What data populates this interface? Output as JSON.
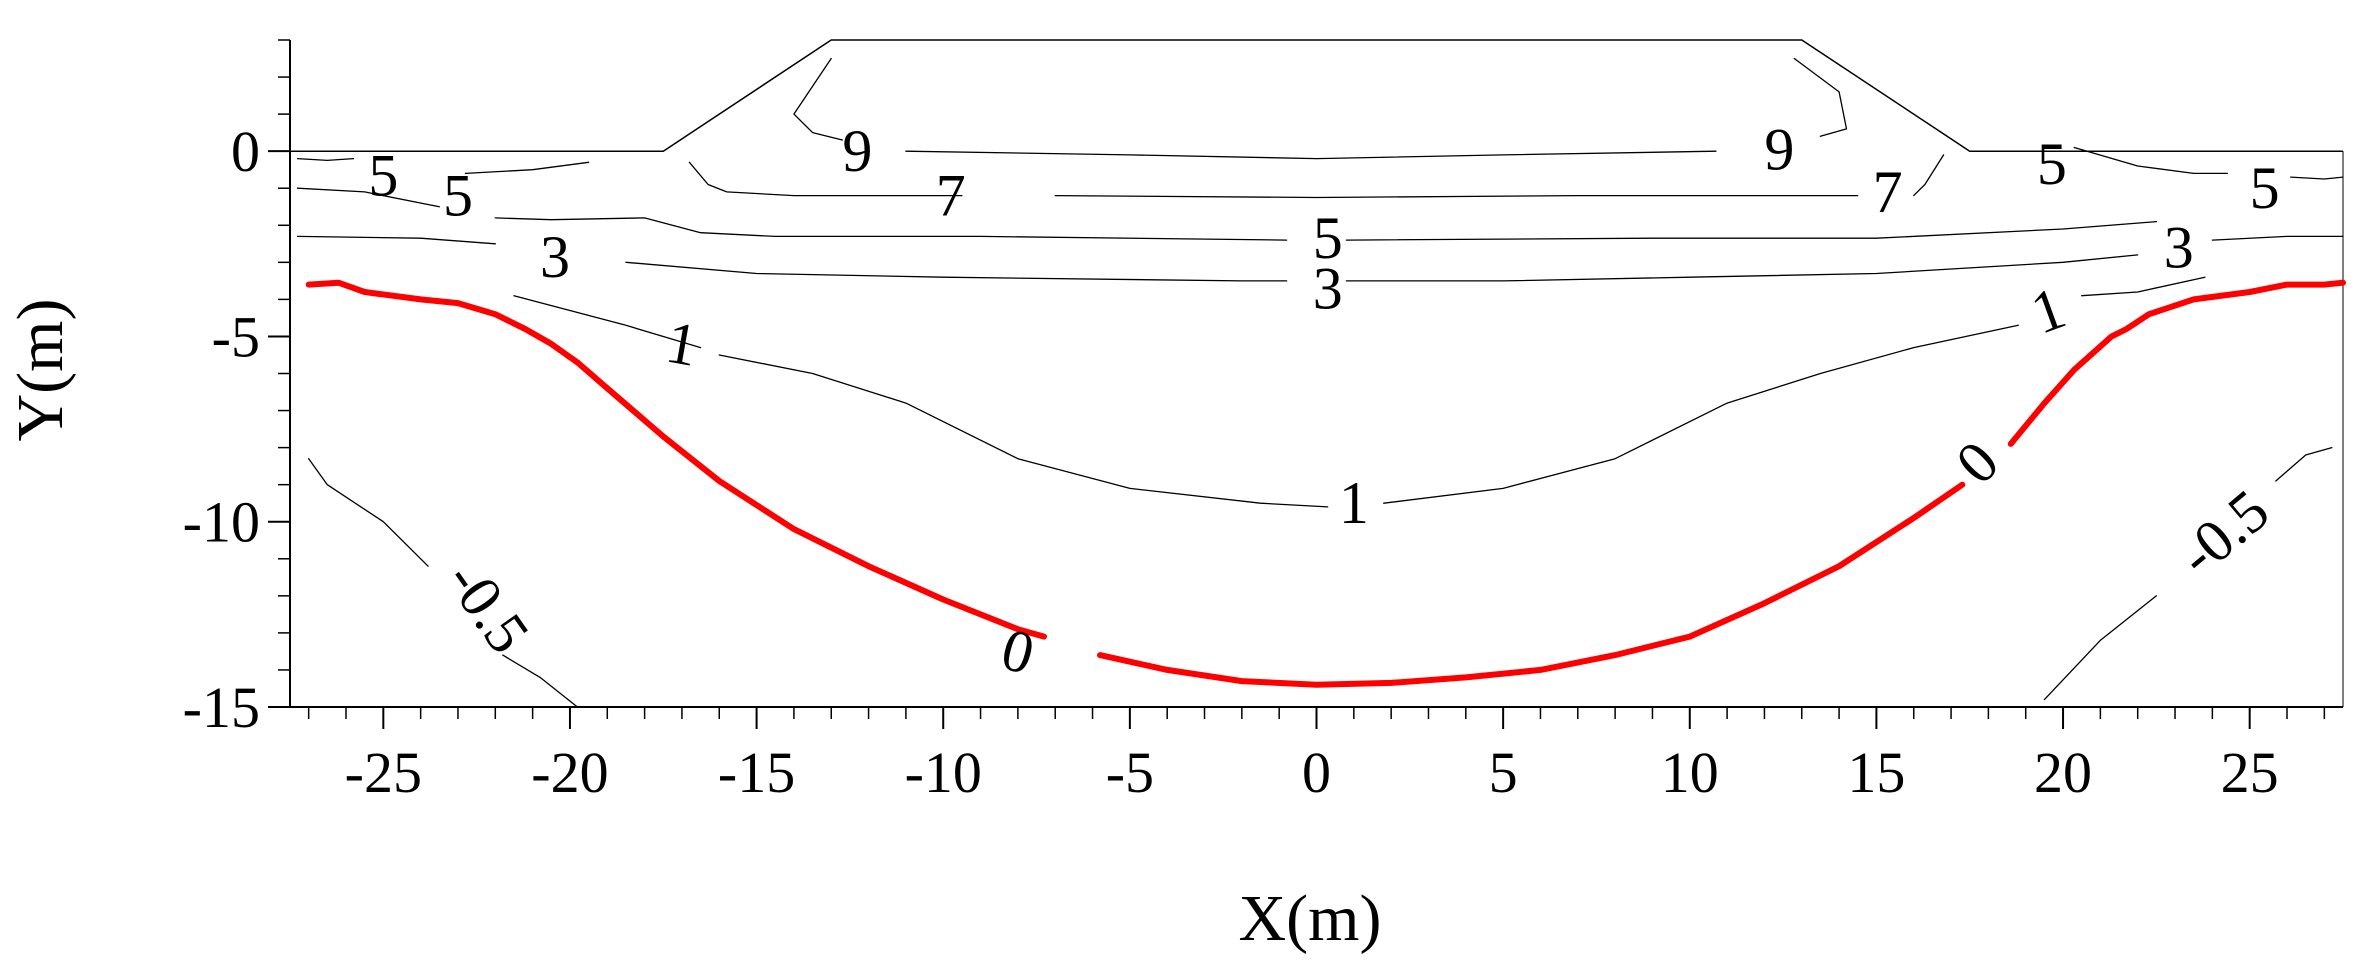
{
  "chart_data": {
    "type": "contour",
    "xlabel": "X(m)",
    "ylabel": "Y(m)",
    "xlim": [
      -27.5,
      27.5
    ],
    "ylim": [
      -15,
      3
    ],
    "xticks": [
      -25,
      -20,
      -15,
      -10,
      -5,
      0,
      5,
      10,
      15,
      20,
      25
    ],
    "xtick_labels": [
      "-25",
      "-20",
      "-15",
      "-10",
      "-5",
      "0",
      "5",
      "10",
      "15",
      "20",
      "25"
    ],
    "yticks": [
      0,
      -5,
      -10,
      -15
    ],
    "ytick_labels": [
      "0",
      "-5",
      "-10",
      "-15"
    ],
    "grid": false,
    "colors": {
      "zero_contour": "#ff0000",
      "contour": "#000000",
      "outline": "#000000"
    },
    "embankment_outline": [
      [
        -27.5,
        0
      ],
      [
        -17.5,
        0
      ],
      [
        -13,
        3
      ],
      [
        13,
        3
      ],
      [
        17.5,
        0
      ],
      [
        27.5,
        0
      ]
    ],
    "contours": [
      {
        "level": 9,
        "label": "9",
        "points": [
          [
            -13,
            2.5
          ],
          [
            -14,
            1
          ],
          [
            -13.5,
            0.5
          ],
          [
            -12.7,
            0.3
          ]
        ]
      },
      {
        "level": 9,
        "label": "9",
        "points": [
          [
            -11,
            0
          ],
          [
            -5,
            -0.1
          ],
          [
            0,
            -0.2
          ],
          [
            5,
            -0.1
          ],
          [
            10.7,
            0
          ]
        ]
      },
      {
        "level": 9,
        "label": "9",
        "points": [
          [
            12.8,
            2.5
          ],
          [
            14,
            1.6
          ],
          [
            14.2,
            0.6
          ],
          [
            13.5,
            0.4
          ]
        ]
      },
      {
        "level": 7,
        "label": "7",
        "points": [
          [
            -16.8,
            -0.3
          ],
          [
            -16.3,
            -0.9
          ],
          [
            -15.8,
            -1.1
          ],
          [
            -14,
            -1.2
          ],
          [
            -9.5,
            -1.2
          ]
        ]
      },
      {
        "level": 7,
        "label": "7",
        "points": [
          [
            -7,
            -1.2
          ],
          [
            0,
            -1.25
          ],
          [
            7,
            -1.2
          ],
          [
            14.5,
            -1.2
          ]
        ]
      },
      {
        "level": 7,
        "label": "7",
        "points": [
          [
            16.8,
            -0.1
          ],
          [
            16.3,
            -0.9
          ],
          [
            16,
            -1.2
          ]
        ]
      },
      {
        "level": 5,
        "label": "5",
        "points": [
          [
            -27.3,
            -0.2
          ],
          [
            -26.5,
            -0.25
          ],
          [
            -25.8,
            -0.2
          ]
        ]
      },
      {
        "level": 5,
        "label": "5",
        "points": [
          [
            -22.8,
            -0.6
          ],
          [
            -21,
            -0.5
          ],
          [
            -19.5,
            -0.3
          ]
        ]
      },
      {
        "level": 5,
        "label": "5",
        "points": [
          [
            -27.3,
            -1.0
          ],
          [
            -25.5,
            -1.1
          ],
          [
            -23.5,
            -1.5
          ]
        ]
      },
      {
        "level": 5,
        "label": "5",
        "points": [
          [
            -22,
            -1.8
          ],
          [
            -20.5,
            -1.85
          ],
          [
            -18,
            -1.8
          ],
          [
            -16.5,
            -2.2
          ],
          [
            -14.5,
            -2.3
          ],
          [
            -9,
            -2.3
          ],
          [
            -0.8,
            -2.4
          ]
        ]
      },
      {
        "level": 5,
        "label": "5",
        "points": [
          [
            0.8,
            -2.4
          ],
          [
            9,
            -2.35
          ],
          [
            15,
            -2.35
          ],
          [
            20,
            -2.1
          ],
          [
            22.5,
            -1.9
          ]
        ]
      },
      {
        "level": 5,
        "label": "5",
        "points": [
          [
            20.3,
            0.1
          ],
          [
            22,
            -0.4
          ],
          [
            23.5,
            -0.6
          ],
          [
            24.4,
            -0.6
          ]
        ]
      },
      {
        "level": 5,
        "label": "5",
        "points": [
          [
            26.1,
            -0.7
          ],
          [
            27,
            -0.75
          ],
          [
            27.5,
            -0.7
          ]
        ]
      },
      {
        "level": 3,
        "label": "3",
        "points": [
          [
            -27.3,
            -2.3
          ],
          [
            -24,
            -2.35
          ],
          [
            -22,
            -2.5
          ]
        ]
      },
      {
        "level": 3,
        "label": "3",
        "points": [
          [
            -18.5,
            -3.0
          ],
          [
            -15,
            -3.3
          ],
          [
            -10,
            -3.4
          ],
          [
            -2,
            -3.5
          ],
          [
            -0.8,
            -3.5
          ]
        ]
      },
      {
        "level": 3,
        "label": "3",
        "points": [
          [
            0.8,
            -3.5
          ],
          [
            5,
            -3.5
          ],
          [
            10,
            -3.4
          ],
          [
            15,
            -3.3
          ],
          [
            20,
            -3.0
          ],
          [
            22,
            -2.8
          ]
        ]
      },
      {
        "level": 3,
        "label": "3",
        "points": [
          [
            24,
            -2.4
          ],
          [
            26,
            -2.3
          ],
          [
            27.5,
            -2.3
          ]
        ]
      },
      {
        "level": 1,
        "label": "1",
        "points": [
          [
            -21.5,
            -3.9
          ],
          [
            -18.5,
            -4.7
          ],
          [
            -16.5,
            -5.3
          ]
        ]
      },
      {
        "level": 1,
        "label": "1",
        "points": [
          [
            -16,
            -5.5
          ],
          [
            -13.5,
            -6
          ],
          [
            -11,
            -6.8
          ],
          [
            -8,
            -8.3
          ],
          [
            -5,
            -9.1
          ],
          [
            -1.5,
            -9.5
          ],
          [
            0.3,
            -9.6
          ]
        ]
      },
      {
        "level": 1,
        "label": "1",
        "points": [
          [
            1.8,
            -9.5
          ],
          [
            5,
            -9.1
          ],
          [
            8,
            -8.3
          ],
          [
            11,
            -6.8
          ],
          [
            13.5,
            -6
          ],
          [
            16,
            -5.3
          ],
          [
            18.8,
            -4.7
          ]
        ]
      },
      {
        "level": 1,
        "label": "1",
        "points": [
          [
            20.5,
            -3.9
          ],
          [
            22,
            -3.8
          ],
          [
            23.8,
            -3.4
          ]
        ]
      },
      {
        "level": 0,
        "label": "0",
        "points": [
          [
            -27,
            -3.6
          ],
          [
            -26.2,
            -3.55
          ],
          [
            -25.5,
            -3.8
          ],
          [
            -24,
            -4.0
          ],
          [
            -23,
            -4.1
          ],
          [
            -22,
            -4.4
          ],
          [
            -21.2,
            -4.8
          ],
          [
            -20.5,
            -5.2
          ],
          [
            -19.8,
            -5.7
          ],
          [
            -19,
            -6.4
          ],
          [
            -17.5,
            -7.7
          ],
          [
            -16,
            -8.9
          ],
          [
            -14,
            -10.2
          ],
          [
            -12,
            -11.2
          ],
          [
            -10,
            -12.1
          ],
          [
            -8,
            -12.9
          ],
          [
            -7.3,
            -13.1
          ]
        ]
      },
      {
        "level": 0,
        "label": "0",
        "points": [
          [
            -5.8,
            -13.6
          ],
          [
            -4,
            -14.0
          ],
          [
            -2,
            -14.3
          ],
          [
            0,
            -14.4
          ],
          [
            2,
            -14.35
          ],
          [
            4,
            -14.2
          ],
          [
            6,
            -14.0
          ],
          [
            8,
            -13.6
          ],
          [
            10,
            -13.1
          ],
          [
            12,
            -12.2
          ],
          [
            14,
            -11.2
          ],
          [
            16,
            -9.9
          ],
          [
            17.3,
            -9.0
          ]
        ]
      },
      {
        "level": 0,
        "label": "0",
        "points": [
          [
            18.6,
            -7.9
          ],
          [
            19.5,
            -6.8
          ],
          [
            20.3,
            -5.9
          ],
          [
            21.3,
            -5.0
          ],
          [
            21.7,
            -4.8
          ],
          [
            22.3,
            -4.4
          ],
          [
            23.5,
            -4.0
          ],
          [
            25,
            -3.8
          ],
          [
            26,
            -3.6
          ],
          [
            27,
            -3.6
          ],
          [
            27.5,
            -3.55
          ]
        ]
      },
      {
        "level": -0.5,
        "label": "-0.5",
        "points": [
          [
            -27,
            -8.3
          ],
          [
            -26.5,
            -9.0
          ],
          [
            -25,
            -10.0
          ],
          [
            -23.8,
            -11.2
          ]
        ]
      },
      {
        "level": -0.5,
        "label": "-0.5",
        "points": [
          [
            -21.8,
            -13.6
          ],
          [
            -20.8,
            -14.2
          ],
          [
            -19.8,
            -15.0
          ]
        ]
      },
      {
        "level": -0.5,
        "label": "-0.5",
        "points": [
          [
            19.5,
            -14.8
          ],
          [
            21,
            -13.2
          ],
          [
            22.5,
            -12.0
          ]
        ]
      },
      {
        "level": -0.5,
        "label": "-0.5",
        "points": [
          [
            25.7,
            -8.9
          ],
          [
            26.5,
            -8.2
          ],
          [
            27.2,
            -8.0
          ]
        ]
      }
    ],
    "contour_labels": [
      {
        "text": "9",
        "x": -12.3,
        "y": 0,
        "angle": 0
      },
      {
        "text": "9",
        "x": 12.4,
        "y": 0.05,
        "angle": 0
      },
      {
        "text": "7",
        "x": -9.8,
        "y": -1.2,
        "angle": 0
      },
      {
        "text": "7",
        "x": 15.3,
        "y": -1.1,
        "angle": 0
      },
      {
        "text": "5",
        "x": -25.0,
        "y": -0.65,
        "angle": 0
      },
      {
        "text": "5",
        "x": -23.0,
        "y": -1.2,
        "angle": 0
      },
      {
        "text": "5",
        "x": 0.3,
        "y": -2.35,
        "angle": 0
      },
      {
        "text": "5",
        "x": 19.7,
        "y": -0.35,
        "angle": 0
      },
      {
        "text": "5",
        "x": 25.4,
        "y": -1.0,
        "angle": 0
      },
      {
        "text": "3",
        "x": -20.4,
        "y": -2.85,
        "angle": 0
      },
      {
        "text": "3",
        "x": 0.3,
        "y": -3.7,
        "angle": 0
      },
      {
        "text": "3",
        "x": 23.1,
        "y": -2.6,
        "angle": 0
      },
      {
        "text": "1",
        "x": -17.0,
        "y": -5.2,
        "angle": 10
      },
      {
        "text": "1",
        "x": 1.0,
        "y": -9.5,
        "angle": 0
      },
      {
        "text": "1",
        "x": 19.6,
        "y": -4.3,
        "angle": -20
      },
      {
        "text": "0",
        "x": -8.0,
        "y": -13.5,
        "angle": 15
      },
      {
        "text": "0",
        "x": 17.7,
        "y": -8.4,
        "angle": -45
      },
      {
        "text": "-0.5",
        "x": -22.2,
        "y": -12.3,
        "angle": 55
      },
      {
        "text": "-0.5",
        "x": 24.3,
        "y": -10.3,
        "angle": -40
      }
    ]
  }
}
